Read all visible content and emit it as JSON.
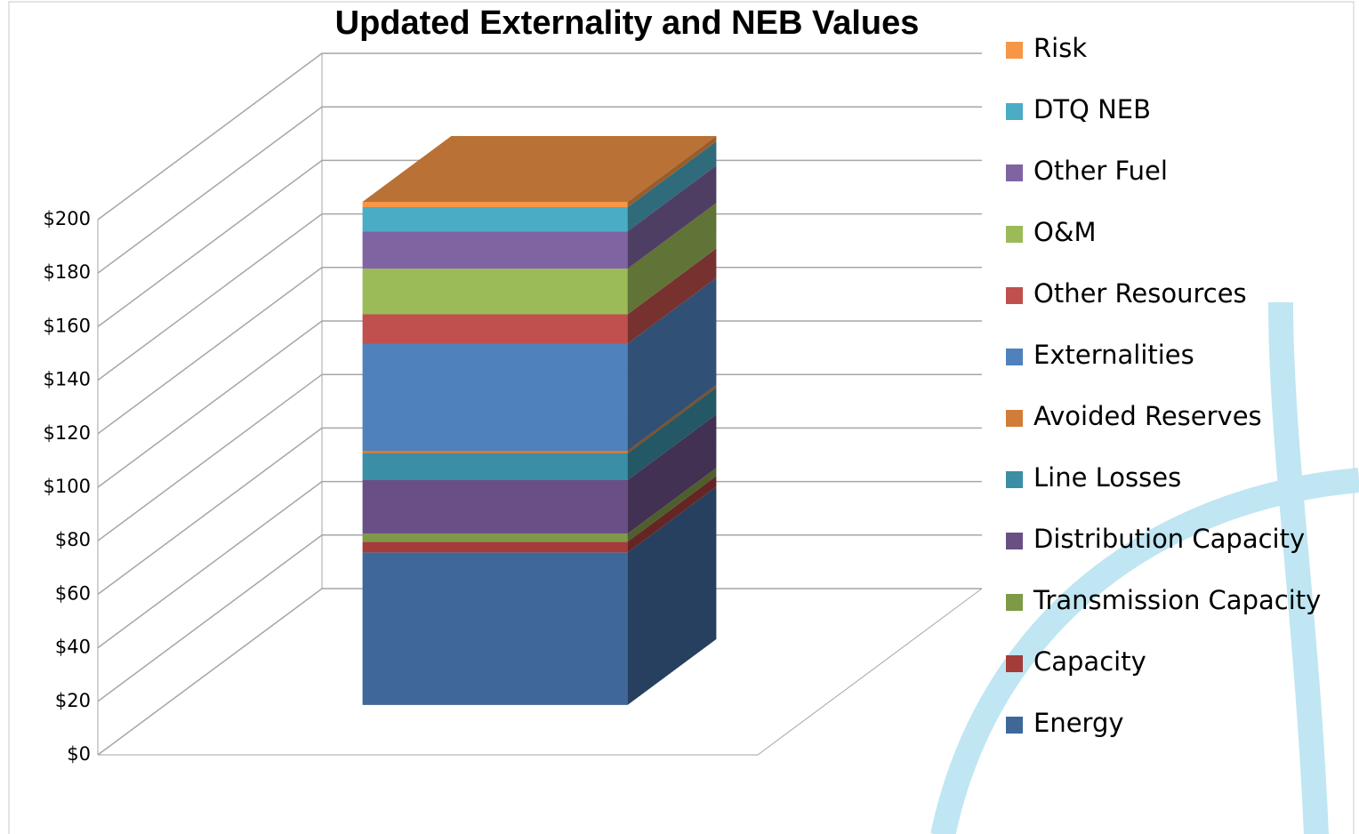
{
  "chart_data": {
    "type": "bar3d_stacked",
    "title": "Updated Externality and NEB Values",
    "series": [
      {
        "name": "Energy",
        "color": "#3f6899",
        "values": [
          57
        ]
      },
      {
        "name": "Capacity",
        "color": "#a33c3a",
        "values": [
          4
        ]
      },
      {
        "name": "Transmission Capacity",
        "color": "#7d9a46",
        "values": [
          3
        ]
      },
      {
        "name": "Distribution Capacity",
        "color": "#6a4f85",
        "values": [
          20
        ]
      },
      {
        "name": "Line Losses",
        "color": "#3a8ea6",
        "values": [
          10
        ]
      },
      {
        "name": "Avoided Reserves",
        "color": "#d17d37",
        "values": [
          1
        ]
      },
      {
        "name": "Externalities",
        "color": "#4f81bd",
        "values": [
          40
        ]
      },
      {
        "name": "Other Resources",
        "color": "#c0504d",
        "values": [
          11
        ]
      },
      {
        "name": "O&M",
        "color": "#9bbb59",
        "values": [
          17
        ]
      },
      {
        "name": "Other Fuel",
        "color": "#8064a2",
        "values": [
          14
        ]
      },
      {
        "name": "DTQ NEB",
        "color": "#4bacc6",
        "values": [
          9
        ]
      },
      {
        "name": "Risk",
        "color": "#f79646",
        "values": [
          2
        ]
      }
    ],
    "ylim": [
      0,
      200
    ],
    "yticks": [
      {
        "value": 0,
        "label": "$0"
      },
      {
        "value": 20,
        "label": "$20"
      },
      {
        "value": 40,
        "label": "$40"
      },
      {
        "value": 60,
        "label": "$60"
      },
      {
        "value": 80,
        "label": "$80"
      },
      {
        "value": 100,
        "label": "$100"
      },
      {
        "value": 120,
        "label": "$120"
      },
      {
        "value": 140,
        "label": "$140"
      },
      {
        "value": 160,
        "label": "$160"
      },
      {
        "value": 180,
        "label": "$180"
      },
      {
        "value": 200,
        "label": "$200"
      }
    ],
    "grid": true,
    "legend": "right"
  }
}
